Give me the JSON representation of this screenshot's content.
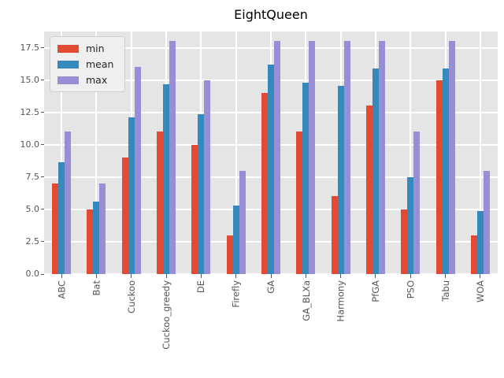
{
  "chart_data": {
    "type": "bar",
    "title": "EightQueen",
    "xlabel": "",
    "ylabel": "",
    "categories": [
      "ABC",
      "Bat",
      "Cuckoo",
      "Cuckoo_greedy",
      "DE",
      "Firefly",
      "GA",
      "GA_BLXa",
      "Harmony",
      "PfGA",
      "PSO",
      "Tabu",
      "WOA"
    ],
    "series": [
      {
        "name": "min",
        "color": "#E24A33",
        "values": [
          7,
          5,
          9,
          11,
          10,
          3,
          14,
          11,
          6,
          13,
          5,
          15,
          3
        ]
      },
      {
        "name": "mean",
        "color": "#348ABD",
        "values": [
          8.65,
          5.6,
          12.1,
          14.7,
          12.35,
          5.3,
          16.2,
          14.8,
          14.55,
          15.9,
          7.5,
          15.9,
          4.85
        ]
      },
      {
        "name": "max",
        "color": "#988ED5",
        "values": [
          11,
          7,
          16,
          18,
          15,
          8,
          18,
          18,
          18,
          18,
          11,
          18,
          8
        ]
      }
    ],
    "yticks": [
      0.0,
      2.5,
      5.0,
      7.5,
      10.0,
      12.5,
      15.0,
      17.5
    ],
    "ytick_labels": [
      "0.0",
      "2.5",
      "5.0",
      "7.5",
      "10.0",
      "12.5",
      "15.0",
      "17.5"
    ],
    "ylim": [
      0,
      18.75
    ],
    "grid": true,
    "legend_position": "upper left",
    "colors": {
      "plot_background": "#e5e5e5",
      "gridline": "#ffffff",
      "tick_text": "#555555",
      "title_text": "#000000"
    }
  }
}
